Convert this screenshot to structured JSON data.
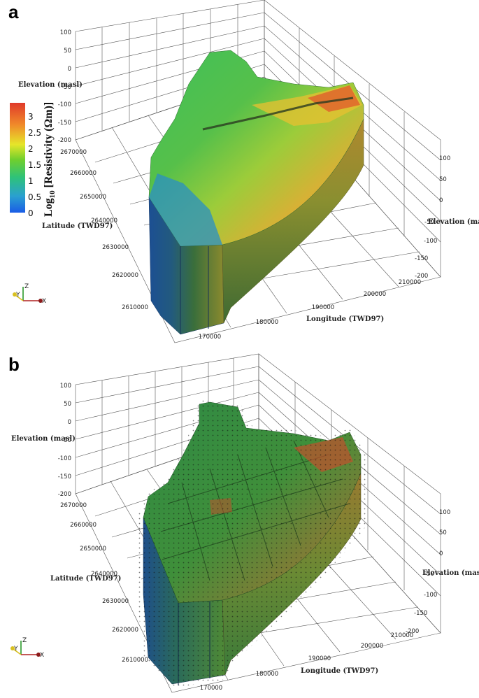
{
  "colorbar": {
    "title_prefix": "Log",
    "title_sub": "10",
    "title_suffix": " [Resistivity (Ωm)]",
    "ticks": [
      "0",
      "0.5",
      "1",
      "1.5",
      "2",
      "2.5",
      "3"
    ],
    "range": [
      0,
      3.4
    ],
    "colors": [
      "#1a5ce6",
      "#2aa0d0",
      "#2ec27a",
      "#6fcf2e",
      "#e6e62a",
      "#f08a2a",
      "#e03a2a"
    ]
  },
  "panels": [
    {
      "letter": "a",
      "elevation_title": "Elevation (masl)",
      "latitude_title": "Latitude (TWD97)",
      "longitude_title": "Longitude (TWD97)",
      "right_elevation_title": "Elevation (masl)",
      "left_elevation_ticks": [
        "100",
        "50",
        "0",
        "-50",
        "-100",
        "-150",
        "-200"
      ],
      "latitude_ticks": [
        "2670000",
        "2660000",
        "2650000",
        "2640000",
        "2630000",
        "2620000",
        "2610000"
      ],
      "longitude_ticks": [
        "170000",
        "180000",
        "190000",
        "200000",
        "210000"
      ],
      "right_elevation_ticks": [
        "100",
        "50",
        "0",
        "-50",
        "-100",
        "-150",
        "-200"
      ],
      "triad": {
        "z": "Z",
        "y": "Y",
        "x": "X"
      }
    },
    {
      "letter": "b",
      "elevation_title": "Elevation (masl)",
      "latitude_title": "Latitude (TWD97)",
      "longitude_title": "Longitude (TWD97)",
      "right_elevation_title": "Elevation (masl)",
      "left_elevation_ticks": [
        "100",
        "50",
        "0",
        "-50",
        "-100",
        "-150",
        "-200"
      ],
      "latitude_ticks": [
        "2670000",
        "2660000",
        "2650000",
        "2640000",
        "2630000",
        "2620000",
        "2610000"
      ],
      "longitude_ticks": [
        "170000",
        "180000",
        "190000",
        "200000",
        "210000"
      ],
      "right_elevation_ticks": [
        "100",
        "50",
        "0",
        "-50",
        "-100",
        "-150",
        "-200"
      ],
      "triad": {
        "z": "Z",
        "y": "Y",
        "x": "X"
      }
    }
  ]
}
